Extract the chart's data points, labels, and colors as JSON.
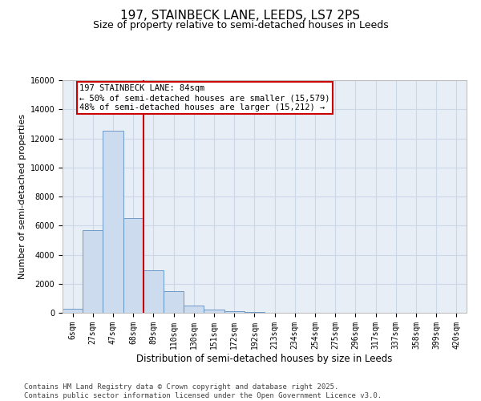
{
  "title_line1": "197, STAINBECK LANE, LEEDS, LS7 2PS",
  "title_line2": "Size of property relative to semi-detached houses in Leeds",
  "xlabel": "Distribution of semi-detached houses by size in Leeds",
  "ylabel": "Number of semi-detached properties",
  "footer_line1": "Contains HM Land Registry data © Crown copyright and database right 2025.",
  "footer_line2": "Contains public sector information licensed under the Open Government Licence v3.0.",
  "categories": [
    "6sqm",
    "27sqm",
    "47sqm",
    "68sqm",
    "89sqm",
    "110sqm",
    "130sqm",
    "151sqm",
    "172sqm",
    "192sqm",
    "213sqm",
    "234sqm",
    "254sqm",
    "275sqm",
    "296sqm",
    "317sqm",
    "337sqm",
    "358sqm",
    "399sqm",
    "420sqm"
  ],
  "values": [
    300,
    5700,
    12500,
    6500,
    2900,
    1500,
    500,
    200,
    100,
    50,
    20,
    5,
    0,
    0,
    0,
    0,
    0,
    0,
    0,
    0
  ],
  "bar_color": "#ccdcee",
  "bar_edge_color": "#5e8fbf",
  "vline_x": 3.5,
  "vline_color": "#cc0000",
  "annotation_text": "197 STAINBECK LANE: 84sqm\n← 50% of semi-detached houses are smaller (15,579)\n48% of semi-detached houses are larger (15,212) →",
  "annot_edge_color": "#cc0000",
  "ylim_max": 16000,
  "yticks": [
    0,
    2000,
    4000,
    6000,
    8000,
    10000,
    12000,
    14000,
    16000
  ],
  "grid_color": "#ccd8e8",
  "bg_color": "#e8eef6",
  "title_fs": 11,
  "subtitle_fs": 9,
  "xlabel_fs": 8.5,
  "ylabel_fs": 8,
  "tick_fs": 7,
  "annot_fs": 7.5,
  "footer_fs": 6.5
}
